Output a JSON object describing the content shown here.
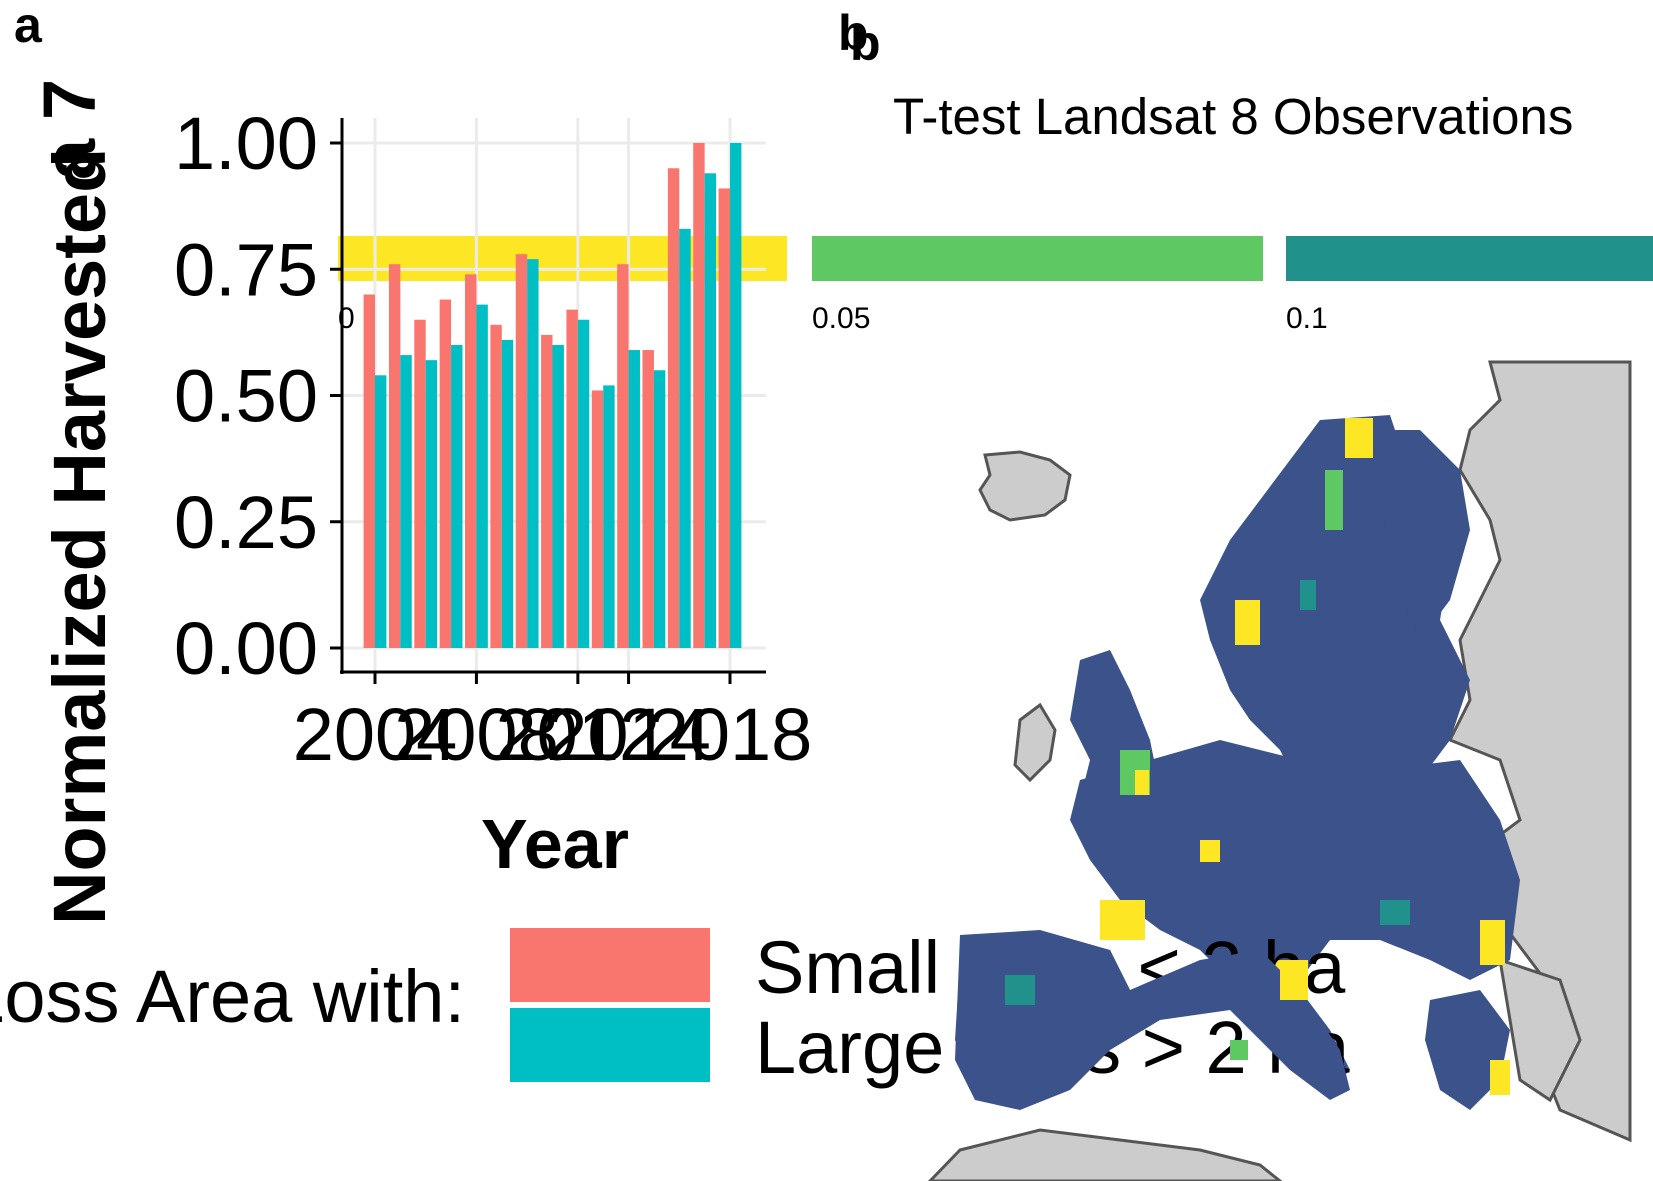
{
  "panel_a": {
    "tag": "a",
    "tag_overlap": "a",
    "ylabel_overlap": "Normalized Harvested",
    "ylabel_glyph": "7"
  },
  "panel_b": {
    "tag": "b",
    "tag_overlap": "b",
    "title": "T-test Landsat 8 Observations",
    "colorbar": {
      "segments": [
        {
          "label": "0",
          "color": "#FDE725"
        },
        {
          "label": "0.05",
          "color": "#5EC962"
        },
        {
          "label": "0.1",
          "color": "#21918C"
        }
      ]
    },
    "colors": {
      "land": "#cccccc",
      "border": "#555555",
      "low_p": "#3B528B",
      "high_p": "#FDE725",
      "mid1": "#5EC962",
      "mid2": "#21918C"
    }
  },
  "chart_data": {
    "type": "bar",
    "title": "",
    "xlabel": "Year",
    "ylabel": "Normalized Harvested",
    "x": [
      2004,
      2005,
      2006,
      2007,
      2008,
      2009,
      2010,
      2011,
      2012,
      2013,
      2014,
      2015,
      2016,
      2017,
      2018
    ],
    "x_ticks": [
      "2004",
      "2008",
      "2012",
      "2014",
      "2018"
    ],
    "y_ticks": [
      "0.00",
      "0.25",
      "0.50",
      "0.75",
      "1.00"
    ],
    "ylim": [
      0,
      1.05
    ],
    "grid": true,
    "legend": {
      "title": "Loss Area with:",
      "placement": "bottom",
      "entries": [
        "Small Loss < 2 ha",
        "Large Loss > 2 ha"
      ]
    },
    "series": [
      {
        "name": "Small Loss < 2 ha",
        "color": "#F8766D",
        "values": [
          0.7,
          0.76,
          0.65,
          0.69,
          0.74,
          0.64,
          0.78,
          0.62,
          0.67,
          0.51,
          0.76,
          0.59,
          0.95,
          1.0,
          0.91
        ]
      },
      {
        "name": "Large Loss > 2 ha",
        "color": "#00BFC4",
        "values": [
          0.54,
          0.58,
          0.57,
          0.6,
          0.68,
          0.61,
          0.77,
          0.6,
          0.65,
          0.52,
          0.59,
          0.55,
          0.83,
          0.94,
          1.0
        ]
      }
    ]
  }
}
